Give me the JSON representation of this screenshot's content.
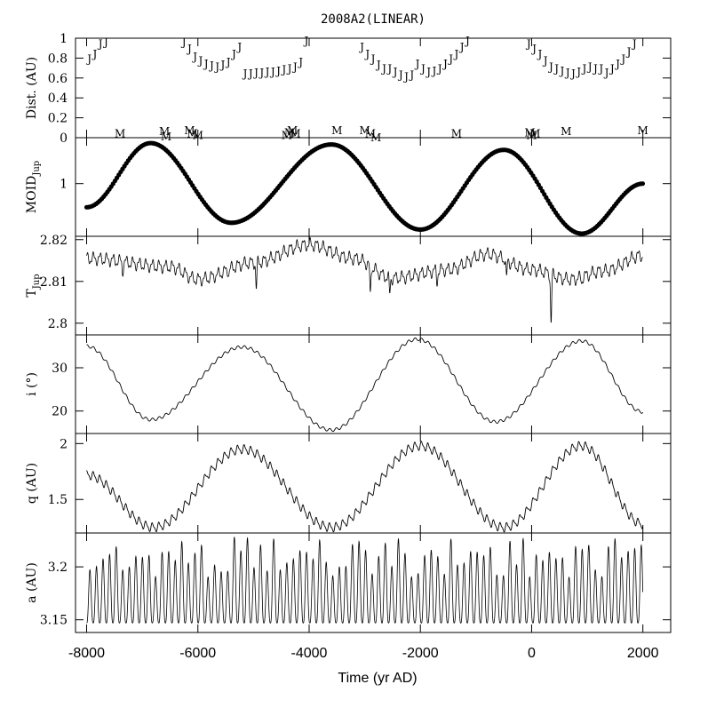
{
  "chart_data": {
    "type": "line",
    "title": "2008A2(LINEAR)",
    "xlabel": "Time (yr AD)",
    "xlim": [
      -8200,
      2500
    ],
    "x_ticks": [
      -8000,
      -6000,
      -4000,
      -2000,
      0,
      2000
    ],
    "x_tick_labels": [
      "-8000",
      "-6000",
      "-4000",
      "-2000",
      "0",
      "2000"
    ],
    "panels": [
      {
        "id": "dist",
        "ylabel": "Dist. (AU)",
        "ylim": [
          0,
          1
        ],
        "y_ticks": [
          0,
          0.2,
          0.4,
          0.6,
          0.8,
          1
        ],
        "y_tick_labels": [
          "0",
          "0.2",
          "0.4",
          "0.6",
          "0.8",
          "1"
        ],
        "type": "scatter",
        "series": [
          {
            "name": "J",
            "marker": "J",
            "x": [
              -7950,
              -7850,
              -7750,
              -7650,
              -6250,
              -6150,
              -6050,
              -5950,
              -5850,
              -5750,
              -5650,
              -5550,
              -5450,
              -5350,
              -5250,
              -5150,
              -5050,
              -4950,
              -4850,
              -4750,
              -4650,
              -4550,
              -4450,
              -4350,
              -4250,
              -4150,
              -4050,
              -3050,
              -2950,
              -2850,
              -2750,
              -2650,
              -2550,
              -2450,
              -2350,
              -2250,
              -2150,
              -2050,
              -1950,
              -1850,
              -1750,
              -1650,
              -1550,
              -1450,
              -1350,
              -1250,
              -1150,
              -50,
              50,
              150,
              250,
              350,
              450,
              550,
              650,
              750,
              850,
              950,
              1050,
              1150,
              1250,
              1350,
              1450,
              1550,
              1650,
              1750,
              1850
            ],
            "y": [
              0.8,
              0.85,
              0.95,
              0.97,
              0.97,
              0.9,
              0.82,
              0.78,
              0.75,
              0.73,
              0.72,
              0.74,
              0.77,
              0.85,
              0.92,
              0.65,
              0.65,
              0.66,
              0.66,
              0.67,
              0.67,
              0.68,
              0.69,
              0.7,
              0.72,
              0.77,
              0.98,
              0.92,
              0.85,
              0.8,
              0.74,
              0.7,
              0.7,
              0.67,
              0.64,
              0.62,
              0.64,
              0.75,
              0.7,
              0.67,
              0.68,
              0.7,
              0.75,
              0.8,
              0.85,
              0.92,
              0.98,
              0.95,
              0.9,
              0.85,
              0.78,
              0.72,
              0.7,
              0.68,
              0.66,
              0.65,
              0.67,
              0.7,
              0.72,
              0.7,
              0.7,
              0.66,
              0.7,
              0.75,
              0.8,
              0.87,
              0.95
            ]
          },
          {
            "name": "M",
            "marker": "M",
            "x": [
              -7400,
              -6600,
              -6570,
              -6150,
              -6100,
              -6000,
              -4400,
              -4350,
              -4300,
              -4250,
              -3500,
              -3000,
              -2900,
              -2800,
              -1350,
              -30,
              0,
              60,
              620,
              2000
            ],
            "y": [
              0.05,
              0.07,
              0.02,
              0.08,
              0.05,
              0.03,
              0.03,
              0.06,
              0.08,
              0.05,
              0.08,
              0.08,
              0.05,
              0.01,
              0.05,
              0.06,
              0.03,
              0.05,
              0.07,
              0.08
            ]
          }
        ]
      },
      {
        "id": "moid",
        "ylabel": "MOID",
        "ylabel_sub": "Jup",
        "ylim": [
          0.22,
          1.68
        ],
        "y_ticks": [
          1
        ],
        "y_tick_labels": [
          "1"
        ],
        "type": "scatter",
        "series": [
          {
            "name": "MOID_Jup",
            "marker": "dot",
            "peaks": [
              [
                -8000,
                0.65
              ],
              [
                -6850,
                1.6
              ],
              [
                -5400,
                0.42
              ],
              [
                -3600,
                1.58
              ],
              [
                -2000,
                0.32
              ],
              [
                -500,
                1.5
              ],
              [
                900,
                0.26
              ],
              [
                2000,
                1.0
              ]
            ]
          }
        ]
      },
      {
        "id": "tjup",
        "ylabel": "T",
        "ylabel_sub": "Jup",
        "ylim": [
          2.7972,
          2.8208
        ],
        "y_ticks": [
          2.8,
          2.81,
          2.82
        ],
        "y_tick_labels": [
          "2.8",
          "2.81",
          "2.82"
        ],
        "type": "line",
        "series": [
          {
            "name": "T_Jup",
            "keypoints": [
              [
                -8000,
                2.8155
              ],
              [
                -6500,
                2.8135
              ],
              [
                -6000,
                2.8105
              ],
              [
                -5000,
                2.8145
              ],
              [
                -4000,
                2.8188
              ],
              [
                -3200,
                2.8155
              ],
              [
                -2500,
                2.8108
              ],
              [
                -1500,
                2.8128
              ],
              [
                -800,
                2.8165
              ],
              [
                0,
                2.8128
              ],
              [
                700,
                2.8105
              ],
              [
                1300,
                2.8125
              ],
              [
                2000,
                2.8162
              ]
            ],
            "dips": [
              [
                -7350,
                2.8112
              ],
              [
                -5450,
                2.8112
              ],
              [
                -4950,
                2.8082
              ],
              [
                -2900,
                2.8075
              ],
              [
                -2550,
                2.8072
              ],
              [
                -1700,
                2.8088
              ],
              [
                -450,
                2.8115
              ],
              [
                350,
                2.8
              ],
              [
                900,
                2.8095
              ]
            ]
          }
        ]
      },
      {
        "id": "incl",
        "ylabel": "i (°)",
        "ylim": [
          14.8,
          37.6
        ],
        "y_ticks": [
          20,
          30
        ],
        "y_tick_labels": [
          "20",
          "30"
        ],
        "type": "line",
        "series": [
          {
            "name": "i",
            "keypoints": [
              [
                -8000,
                35
              ],
              [
                -6850,
                18
              ],
              [
                -5200,
                34.8
              ],
              [
                -3600,
                15.6
              ],
              [
                -2050,
                36.6
              ],
              [
                -650,
                17.5
              ],
              [
                900,
                36.2
              ],
              [
                2000,
                19.8
              ]
            ]
          }
        ]
      },
      {
        "id": "q",
        "ylabel": "q (AU)",
        "ylim": [
          1.2,
          2.09
        ],
        "y_ticks": [
          1.5,
          2
        ],
        "y_tick_labels": [
          "1.5",
          "2"
        ],
        "type": "line",
        "series": [
          {
            "name": "q",
            "keypoints": [
              [
                -8000,
                1.72
              ],
              [
                -6800,
                1.25
              ],
              [
                -5200,
                1.95
              ],
              [
                -3600,
                1.25
              ],
              [
                -2000,
                1.98
              ],
              [
                -500,
                1.25
              ],
              [
                900,
                1.98
              ],
              [
                2000,
                1.28
              ]
            ]
          }
        ]
      },
      {
        "id": "a",
        "ylabel": "a (AU)",
        "ylim": [
          3.138,
          3.232
        ],
        "y_ticks": [
          3.15,
          3.2
        ],
        "y_tick_labels": [
          "3.15",
          "3.2"
        ],
        "type": "line",
        "series": [
          {
            "name": "a",
            "period_yr": 118,
            "baseline": 3.147,
            "amp_min": 3.19,
            "amp_max": 3.23
          }
        ]
      }
    ]
  }
}
